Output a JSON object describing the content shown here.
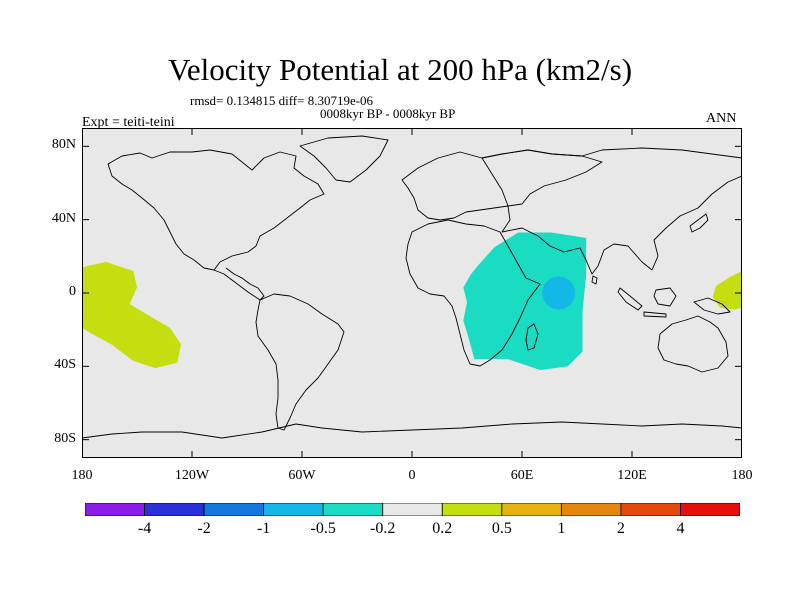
{
  "title": "Velocity Potential at 200 hPa (km2/s)",
  "stats_line": "rmsd= 0.134815  diff= 8.30719e-06",
  "period_line": "0008kyr BP - 0008kyr BP",
  "experiment": "Expt = teiti-teini",
  "season": "ANN",
  "lat_ticks": [
    {
      "label": "80N",
      "lat": 80
    },
    {
      "label": "40N",
      "lat": 40
    },
    {
      "label": "0",
      "lat": 0
    },
    {
      "label": "40S",
      "lat": -40
    },
    {
      "label": "80S",
      "lat": -80
    }
  ],
  "lon_ticks": [
    {
      "label": "180",
      "lon": -180
    },
    {
      "label": "120W",
      "lon": -120
    },
    {
      "label": "60W",
      "lon": -60
    },
    {
      "label": "0",
      "lon": 0
    },
    {
      "label": "60E",
      "lon": 60
    },
    {
      "label": "120E",
      "lon": 120
    },
    {
      "label": "180",
      "lon": 180
    }
  ],
  "colorbar": {
    "colors": [
      "#8a1ee6",
      "#2b2fd8",
      "#1478de",
      "#13b8e6",
      "#19dcc2",
      "#e8e8e8",
      "#c4de0f",
      "#e4b40c",
      "#e4860c",
      "#e44a0c",
      "#e4100c"
    ],
    "labels": [
      "-4",
      "-2",
      "-1",
      "-0.5",
      "-0.2",
      "0.2",
      "0.5",
      "1",
      "2",
      "4"
    ]
  },
  "colors": {
    "background": "#e8e8e8",
    "positive_fill": "#c4de0f",
    "negative_fill": "#19dcc2",
    "negative_core": "#13b8e6",
    "coast": "#000000"
  },
  "chart_data": {
    "type": "heatmap",
    "title": "Velocity Potential at 200 hPa (km2/s)",
    "field": "velocity potential difference at 200 hPa",
    "units": "km2/s",
    "projection": "cylindrical equidistant",
    "xlim": [
      -180,
      180
    ],
    "ylim": [
      -90,
      90
    ],
    "contour_levels": [
      -4,
      -2,
      -1,
      -0.5,
      -0.2,
      0.2,
      0.5,
      1,
      2,
      4
    ],
    "regions": [
      {
        "name": "central-pacific-positive",
        "range": "0.2 to 0.5",
        "polygon_lonlat": [
          [
            -180,
            14
          ],
          [
            -167,
            17
          ],
          [
            -152,
            12
          ],
          [
            -150,
            3
          ],
          [
            -154,
            -6
          ],
          [
            -144,
            -12
          ],
          [
            -132,
            -19
          ],
          [
            -126,
            -28
          ],
          [
            -128,
            -38
          ],
          [
            -140,
            -41
          ],
          [
            -152,
            -37
          ],
          [
            -164,
            -28
          ],
          [
            -175,
            -22
          ],
          [
            -180,
            -19
          ]
        ]
      },
      {
        "name": "west-pacific-positive",
        "range": "0.2 to 0.5",
        "polygon_lonlat": [
          [
            180,
            12
          ],
          [
            174,
            9
          ],
          [
            166,
            4
          ],
          [
            164,
            -2
          ],
          [
            168,
            -8
          ],
          [
            176,
            -9
          ],
          [
            180,
            -8
          ]
        ]
      },
      {
        "name": "indian-ocean-negative",
        "range": "-0.5 to -0.2",
        "polygon_lonlat": [
          [
            36,
            15
          ],
          [
            45,
            25
          ],
          [
            58,
            33
          ],
          [
            76,
            33
          ],
          [
            95,
            30
          ],
          [
            95,
            10
          ],
          [
            93,
            -10
          ],
          [
            93,
            -32
          ],
          [
            85,
            -40
          ],
          [
            70,
            -42
          ],
          [
            52,
            -36
          ],
          [
            34,
            -36
          ],
          [
            31,
            -25
          ],
          [
            28,
            -15
          ],
          [
            30,
            -5
          ],
          [
            28,
            3
          ],
          [
            32,
            10
          ]
        ]
      },
      {
        "name": "indian-ocean-core",
        "range": "-1 to -0.5",
        "center_lonlat": [
          80,
          0
        ],
        "radius_deg": 3
      }
    ]
  }
}
